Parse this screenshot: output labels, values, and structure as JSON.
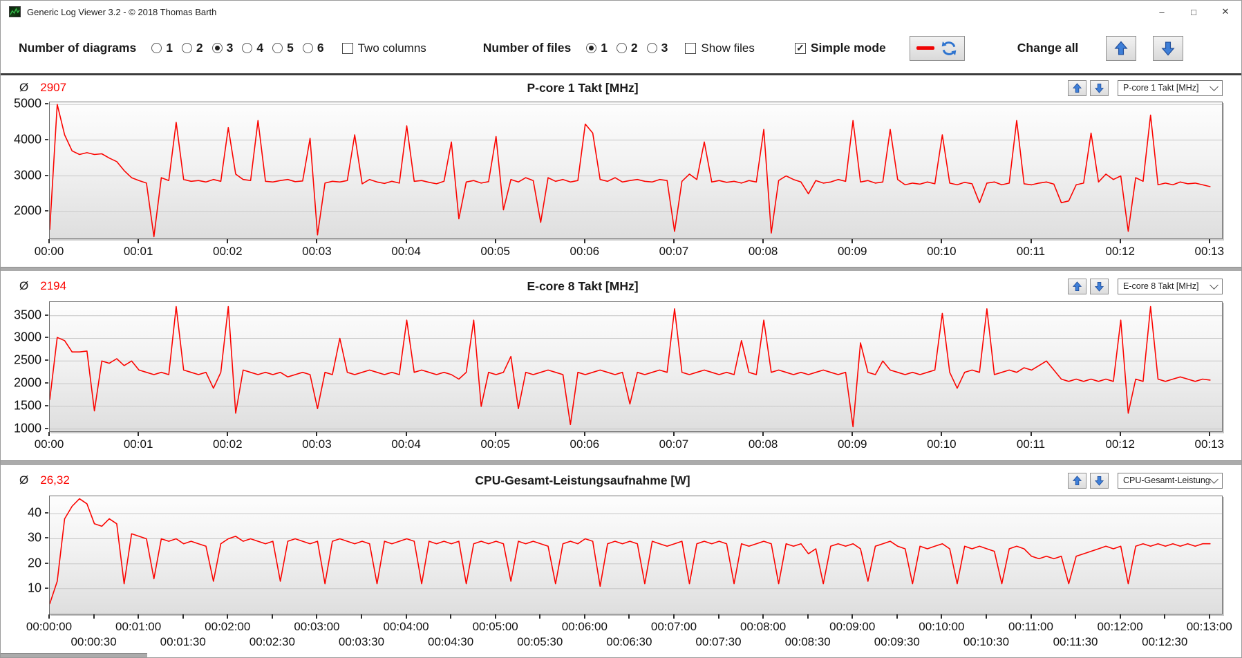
{
  "window": {
    "title": "Generic Log Viewer 3.2 - © 2018 Thomas Barth",
    "controls": {
      "minimize": "–",
      "maximize": "□",
      "close": "✕"
    }
  },
  "toolbar": {
    "diagrams_label": "Number of diagrams",
    "diagram_options": [
      "1",
      "2",
      "3",
      "4",
      "5",
      "6"
    ],
    "diagrams_selected": "3",
    "two_columns_label": "Two columns",
    "two_columns_checked": false,
    "files_label": "Number of files",
    "file_options": [
      "1",
      "2",
      "3"
    ],
    "files_selected": "1",
    "show_files_label": "Show files",
    "show_files_checked": false,
    "simple_mode_label": "Simple mode",
    "simple_mode_checked": true,
    "change_all_label": "Change all",
    "icons": {
      "line_style_button": "red-line-and-sync-icon",
      "up_button": "blue-up-arrow-icon",
      "down_button": "blue-down-arrow-icon"
    }
  },
  "panels": [
    {
      "avg_symbol": "Ø",
      "avg": "2907",
      "title": "P-core 1 Takt [MHz]",
      "dropdown": "P-core 1 Takt [MHz]"
    },
    {
      "avg_symbol": "Ø",
      "avg": "2194",
      "title": "E-core 8 Takt [MHz]",
      "dropdown": "E-core 8 Takt [MHz]"
    },
    {
      "avg_symbol": "Ø",
      "avg": "26,32",
      "title": "CPU-Gesamt-Leistungsaufnahme [W]",
      "dropdown": "CPU-Gesamt-Leistungsau"
    }
  ],
  "accent": {
    "line_color": "#fb0400",
    "avg_color": "#fb0400",
    "arrow_blue": "#3e7fd8"
  },
  "chart_data": [
    {
      "type": "line",
      "title": "P-core 1 Takt [MHz]",
      "series_color": "#fb0400",
      "average": 2907,
      "interval_s": 5,
      "xlim_s": [
        0,
        788
      ],
      "xtick_interval_s": 60,
      "xticklabels": [
        "00:00",
        "00:01",
        "00:02",
        "00:03",
        "00:04",
        "00:05",
        "00:06",
        "00:07",
        "00:08",
        "00:09",
        "00:10",
        "00:11",
        "00:12",
        "00:13"
      ],
      "ylim": [
        1250,
        5060
      ],
      "yticks": [
        2000,
        3000,
        4000,
        5000
      ],
      "grid": true,
      "values": [
        1500,
        5000,
        4150,
        3700,
        3600,
        3650,
        3600,
        3620,
        3500,
        3400,
        3150,
        2950,
        2870,
        2800,
        1300,
        2950,
        2870,
        4500,
        2900,
        2850,
        2870,
        2830,
        2900,
        2850,
        4350,
        3050,
        2900,
        2870,
        4550,
        2850,
        2830,
        2870,
        2900,
        2840,
        2860,
        4050,
        1350,
        2800,
        2850,
        2830,
        2870,
        4150,
        2780,
        2900,
        2830,
        2790,
        2850,
        2800,
        4400,
        2850,
        2870,
        2820,
        2780,
        2850,
        3950,
        1800,
        2830,
        2870,
        2800,
        2840,
        4100,
        2050,
        2900,
        2830,
        2950,
        2870,
        1700,
        2950,
        2850,
        2900,
        2830,
        2870,
        4450,
        4200,
        2900,
        2850,
        2950,
        2830,
        2870,
        2900,
        2850,
        2830,
        2900,
        2870,
        1450,
        2850,
        3050,
        2900,
        3950,
        2830,
        2870,
        2820,
        2850,
        2800,
        2870,
        2830,
        4300,
        1400,
        2870,
        3000,
        2900,
        2830,
        2500,
        2870,
        2800,
        2830,
        2900,
        2850,
        4550,
        2830,
        2870,
        2800,
        2830,
        4300,
        2900,
        2750,
        2800,
        2770,
        2830,
        2780,
        4150,
        2800,
        2750,
        2820,
        2780,
        2250,
        2800,
        2830,
        2750,
        2800,
        4550,
        2780,
        2750,
        2800,
        2830,
        2770,
        2250,
        2300,
        2750,
        2800,
        4200,
        2830,
        3050,
        2900,
        3000,
        1450,
        2950,
        2850,
        4700,
        2750,
        2800,
        2750,
        2830,
        2780,
        2800,
        2750,
        2700
      ]
    },
    {
      "type": "line",
      "title": "E-core 8 Takt [MHz]",
      "series_color": "#fb0400",
      "average": 2194,
      "interval_s": 5,
      "xlim_s": [
        0,
        788
      ],
      "xtick_interval_s": 60,
      "xticklabels": [
        "00:00",
        "00:01",
        "00:02",
        "00:03",
        "00:04",
        "00:05",
        "00:06",
        "00:07",
        "00:08",
        "00:09",
        "00:10",
        "00:11",
        "00:12",
        "00:13"
      ],
      "ylim": [
        950,
        3800
      ],
      "yticks": [
        1000,
        1500,
        2000,
        2500,
        3000,
        3500
      ],
      "grid": true,
      "values": [
        1650,
        3020,
        2950,
        2700,
        2700,
        2720,
        1400,
        2500,
        2450,
        2550,
        2400,
        2500,
        2300,
        2250,
        2200,
        2250,
        2200,
        3700,
        2300,
        2250,
        2200,
        2250,
        1900,
        2250,
        3700,
        1350,
        2300,
        2250,
        2200,
        2250,
        2200,
        2250,
        2150,
        2200,
        2250,
        2200,
        1450,
        2250,
        2200,
        3000,
        2250,
        2200,
        2250,
        2300,
        2250,
        2200,
        2250,
        2200,
        3400,
        2250,
        2300,
        2250,
        2200,
        2250,
        2200,
        2100,
        2250,
        3400,
        1500,
        2250,
        2200,
        2250,
        2600,
        1450,
        2250,
        2200,
        2250,
        2300,
        2250,
        2200,
        1100,
        2250,
        2200,
        2250,
        2300,
        2250,
        2200,
        2250,
        1550,
        2250,
        2200,
        2250,
        2300,
        2250,
        3650,
        2250,
        2200,
        2250,
        2300,
        2250,
        2200,
        2250,
        2200,
        2950,
        2250,
        2200,
        3400,
        2250,
        2300,
        2250,
        2200,
        2250,
        2200,
        2250,
        2300,
        2250,
        2200,
        2250,
        1050,
        2900,
        2250,
        2200,
        2500,
        2300,
        2250,
        2200,
        2250,
        2200,
        2250,
        2300,
        3550,
        2250,
        1900,
        2250,
        2300,
        2250,
        3650,
        2200,
        2250,
        2300,
        2250,
        2350,
        2300,
        2400,
        2500,
        2300,
        2100,
        2050,
        2100,
        2050,
        2100,
        2050,
        2100,
        2050,
        3400,
        1350,
        2100,
        2050,
        3700,
        2100,
        2050,
        2100,
        2150,
        2100,
        2050,
        2100,
        2080
      ]
    },
    {
      "type": "line",
      "title": "CPU-Gesamt-Leistungsaufnahme [W]",
      "series_color": "#fb0400",
      "average": 26.32,
      "interval_s": 5,
      "xlim_s": [
        0,
        788
      ],
      "xtick_interval_s": 60,
      "xticklabels": [
        "00:00:00",
        "00:01:00",
        "00:02:00",
        "00:03:00",
        "00:04:00",
        "00:05:00",
        "00:06:00",
        "00:07:00",
        "00:08:00",
        "00:09:00",
        "00:10:00",
        "00:11:00",
        "00:12:00",
        "00:13:00"
      ],
      "xticklabels_row2": [
        "00:00:30",
        "00:01:30",
        "00:02:30",
        "00:03:30",
        "00:04:30",
        "00:05:30",
        "00:06:30",
        "00:07:30",
        "00:08:30",
        "00:09:30",
        "00:10:30",
        "00:11:30",
        "00:12:30"
      ],
      "xtick_row2_offset_s": 30,
      "ylim": [
        0,
        47
      ],
      "yticks": [
        10,
        20,
        30,
        40
      ],
      "grid": true,
      "values": [
        4,
        13,
        38,
        43,
        46,
        44,
        36,
        35,
        38,
        36,
        12,
        32,
        31,
        30,
        14,
        30,
        29,
        30,
        28,
        29,
        28,
        27,
        13,
        28,
        30,
        31,
        29,
        30,
        29,
        28,
        29,
        13,
        29,
        30,
        29,
        28,
        29,
        12,
        29,
        30,
        29,
        28,
        29,
        28,
        12,
        29,
        28,
        29,
        30,
        29,
        12,
        29,
        28,
        29,
        28,
        29,
        12,
        28,
        29,
        28,
        29,
        28,
        13,
        29,
        28,
        29,
        28,
        27,
        12,
        28,
        29,
        28,
        30,
        29,
        11,
        28,
        29,
        28,
        29,
        28,
        12,
        29,
        28,
        27,
        28,
        29,
        12,
        28,
        29,
        28,
        29,
        28,
        12,
        28,
        27,
        28,
        29,
        28,
        12,
        28,
        27,
        28,
        24,
        26,
        12,
        27,
        28,
        27,
        28,
        26,
        13,
        27,
        28,
        29,
        27,
        26,
        12,
        27,
        26,
        27,
        28,
        26,
        12,
        27,
        26,
        27,
        26,
        25,
        12,
        26,
        27,
        26,
        23,
        22,
        23,
        22,
        23,
        12,
        23,
        24,
        25,
        26,
        27,
        26,
        27,
        12,
        27,
        28,
        27,
        28,
        27,
        28,
        27,
        28,
        27,
        28,
        28
      ]
    }
  ]
}
